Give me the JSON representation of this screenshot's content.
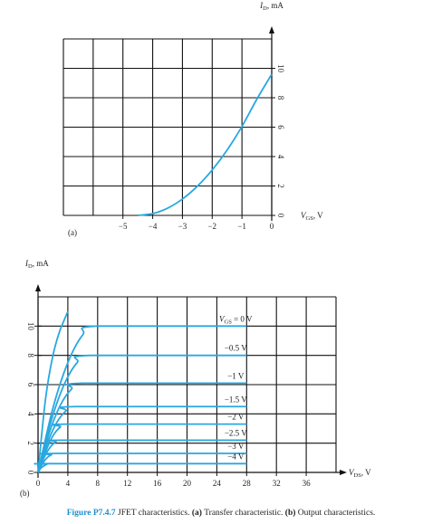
{
  "chart_data": [
    {
      "type": "line",
      "panel": "(a)",
      "xlabel": {
        "main": "V",
        "sub": "GS",
        "rest": ", V"
      },
      "ylabel": {
        "main": "I",
        "sub": "D",
        "rest": ", mA"
      },
      "xlim": [
        -7,
        0
      ],
      "ylim": [
        0,
        12
      ],
      "xticks": [
        {
          "value": -5,
          "label": "−5"
        },
        {
          "value": -4,
          "label": "−4"
        },
        {
          "value": -3,
          "label": "−3"
        },
        {
          "value": -2,
          "label": "−2"
        },
        {
          "value": -1,
          "label": "−1"
        },
        0
      ],
      "yticks": [
        0,
        2,
        4,
        6,
        8,
        10
      ],
      "xgrid": [
        -7,
        -6,
        -5,
        -4,
        -3,
        -2,
        -1,
        0
      ],
      "ygrid": [
        0,
        2,
        4,
        6,
        8,
        10,
        12
      ],
      "color": "#29a8e0",
      "series": [
        {
          "x": [
            -4.5,
            -4,
            -3.5,
            -3,
            -2.5,
            -2,
            -1.5,
            -1,
            -0.5,
            0
          ],
          "values": [
            0,
            0.12,
            0.49,
            1.11,
            1.98,
            3.09,
            4.44,
            6.05,
            7.9,
            9.6
          ]
        }
      ]
    },
    {
      "type": "line",
      "panel": "(b)",
      "xlabel": {
        "main": "V",
        "sub": "DS",
        "rest": ", V"
      },
      "ylabel": {
        "main": "I",
        "sub": "D",
        "rest": ", mA"
      },
      "xlim": [
        0,
        40
      ],
      "ylim": [
        0,
        12
      ],
      "xticks": [
        0,
        4,
        8,
        12,
        16,
        20,
        24,
        28,
        32,
        36
      ],
      "yticks": [
        0,
        2,
        4,
        6,
        8,
        10
      ],
      "xgrid": [
        0,
        4,
        8,
        12,
        16,
        20,
        24,
        28,
        32,
        36,
        40
      ],
      "ygrid": [
        0,
        2,
        4,
        6,
        8,
        10,
        12
      ],
      "color": "#29a8e0",
      "series": [
        {
          "x": [
            0,
            1,
            2,
            3,
            4
          ],
          "values": [
            0,
            5,
            8,
            9.8,
            11
          ]
        },
        {
          "label": {
            "main": "V",
            "sub": "GS",
            "rest": " = 0 V"
          },
          "x": [
            0,
            2,
            4,
            6,
            8,
            28
          ],
          "values": [
            0,
            4.4,
            7.5,
            9.4,
            10,
            10
          ]
        },
        {
          "label": "−0.5 V",
          "x": [
            0,
            1.75,
            3.5,
            5.25,
            7,
            28
          ],
          "values": [
            0,
            3.5,
            6,
            7.5,
            8,
            8
          ]
        },
        {
          "label": "−1 V",
          "x": [
            0,
            1.5,
            3,
            4.5,
            6,
            28
          ],
          "values": [
            0,
            2.7,
            4.6,
            5.7,
            6.1,
            6.1
          ]
        },
        {
          "label": "−1.5 V",
          "x": [
            0,
            1.25,
            2.5,
            3.75,
            5,
            28
          ],
          "values": [
            0,
            2,
            3.4,
            4.2,
            4.5,
            4.5
          ]
        },
        {
          "label": "−2 V",
          "x": [
            0,
            1,
            2,
            3,
            4,
            28
          ],
          "values": [
            0,
            1.4,
            2.5,
            3.1,
            3.3,
            3.3
          ]
        },
        {
          "label": "−2.5 V",
          "x": [
            0,
            0.8,
            1.6,
            2.4,
            3.2,
            28
          ],
          "values": [
            0,
            1,
            1.7,
            2.1,
            2.2,
            2.2
          ]
        },
        {
          "label": "−3 V",
          "x": [
            0,
            0.6,
            1.2,
            1.8,
            2.4,
            28
          ],
          "values": [
            0,
            0.6,
            1,
            1.2,
            1.3,
            1.3
          ]
        },
        {
          "label": "−4 V",
          "x": [
            0,
            0.4,
            0.8,
            1.2,
            1.6,
            28
          ],
          "values": [
            0,
            0.3,
            0.45,
            0.56,
            0.6,
            0.6
          ]
        }
      ]
    }
  ],
  "caption": {
    "number": "Figure P7.4.7",
    "text": "JFET characteristics.",
    "a": "(a)",
    "a_text": "Transfer characteristic.",
    "b": "(b)",
    "b_text": "Output characteristics."
  }
}
